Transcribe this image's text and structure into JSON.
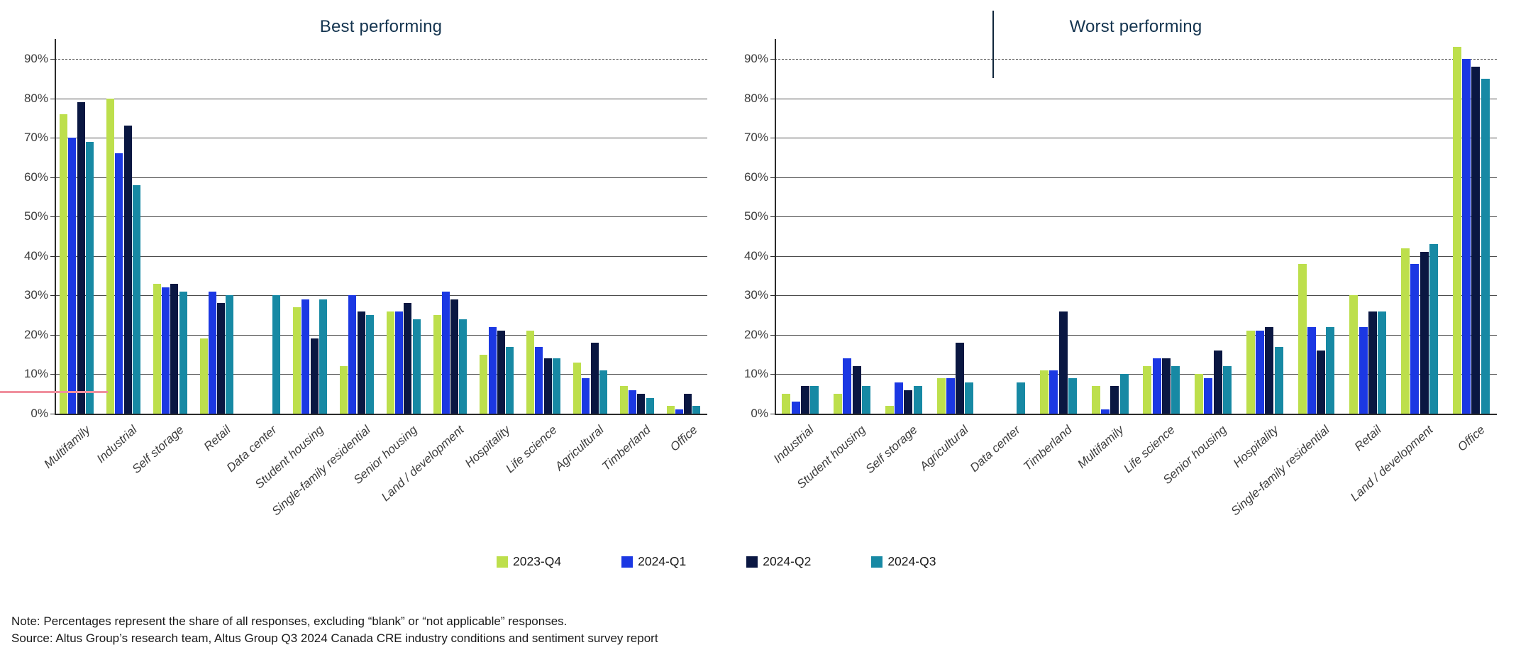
{
  "titles": {
    "best": "Best performing",
    "worst": "Worst performing"
  },
  "legend": {
    "items": [
      {
        "label": "2023-Q4",
        "color": "#bddf4c"
      },
      {
        "label": "2024-Q1",
        "color": "#1b38e3"
      },
      {
        "label": "2024-Q2",
        "color": "#0a1742"
      },
      {
        "label": "2024-Q3",
        "color": "#1789a4"
      }
    ]
  },
  "footer": {
    "note": "Note: Percentages represent the share of all responses, excluding “blank” or “not applicable” responses.",
    "source": "Source: Altus Group’s research team, Altus Group Q3 2024 Canada CRE industry conditions and sentiment survey report"
  },
  "colors": {
    "series_2023_q4": "#bddf4c",
    "series_2024_q1": "#1b38e3",
    "series_2024_q2": "#0a1742",
    "series_2024_q3": "#1789a4",
    "title": "#14344f",
    "gridline": "#4d4d4d",
    "axis": "#2b2b2b",
    "axis_text": "#3d3d3d",
    "pink_annotation": "#f0909e"
  },
  "annotation": {
    "pink_line": "short pink horizontal rule at left edge near 6% level"
  },
  "chart_data": [
    {
      "type": "bar",
      "title": "Best performing",
      "categories": [
        "Multifamily",
        "Industrial",
        "Self storage",
        "Retail",
        "Data center",
        "Student housing",
        "Single-family residential",
        "Senior housing",
        "Land / development",
        "Hospitality",
        "Life science",
        "Agricultural",
        "Timberland",
        "Office"
      ],
      "series": [
        {
          "name": "2023-Q4",
          "values": [
            76,
            80,
            33,
            19,
            0,
            27,
            12,
            26,
            25,
            15,
            21,
            13,
            7,
            2
          ]
        },
        {
          "name": "2024-Q1",
          "values": [
            70,
            66,
            32,
            31,
            0,
            29,
            30,
            26,
            31,
            22,
            17,
            9,
            6,
            1
          ]
        },
        {
          "name": "2024-Q2",
          "values": [
            79,
            73,
            33,
            28,
            0,
            19,
            26,
            28,
            29,
            21,
            14,
            18,
            5,
            5
          ]
        },
        {
          "name": "2024-Q3",
          "values": [
            69,
            58,
            31,
            30,
            30,
            29,
            25,
            24,
            24,
            17,
            14,
            11,
            4,
            2
          ]
        }
      ],
      "ylabel": "",
      "xlabel": "",
      "ylim": [
        0,
        90
      ],
      "yticks": [
        "0%",
        "10%",
        "20%",
        "30%",
        "40%",
        "50%",
        "60%",
        "70%",
        "80%",
        "90%"
      ],
      "grid": true,
      "legend_position": "bottom"
    },
    {
      "type": "bar",
      "title": "Worst performing",
      "categories": [
        "Industrial",
        "Student housing",
        "Self storage",
        "Agricultural",
        "Data center",
        "Timberland",
        "Multifamily",
        "Life science",
        "Senior housing",
        "Hospitality",
        "Single-family residential",
        "Retail",
        "Land / development",
        "Office"
      ],
      "series": [
        {
          "name": "2023-Q4",
          "values": [
            5,
            5,
            2,
            9,
            0,
            11,
            7,
            12,
            10,
            21,
            38,
            30,
            42,
            93
          ]
        },
        {
          "name": "2024-Q1",
          "values": [
            3,
            14,
            8,
            9,
            0,
            11,
            1,
            14,
            9,
            21,
            22,
            22,
            38,
            90
          ]
        },
        {
          "name": "2024-Q2",
          "values": [
            7,
            12,
            6,
            18,
            0,
            26,
            7,
            14,
            16,
            22,
            16,
            26,
            41,
            88
          ]
        },
        {
          "name": "2024-Q3",
          "values": [
            7,
            7,
            7,
            8,
            8,
            9,
            10,
            12,
            12,
            17,
            22,
            26,
            43,
            85
          ]
        }
      ],
      "ylabel": "",
      "xlabel": "",
      "ylim": [
        0,
        90
      ],
      "yticks": [
        "0%",
        "10%",
        "20%",
        "30%",
        "40%",
        "50%",
        "60%",
        "70%",
        "80%",
        "90%"
      ],
      "grid": true,
      "legend_position": "bottom"
    }
  ]
}
